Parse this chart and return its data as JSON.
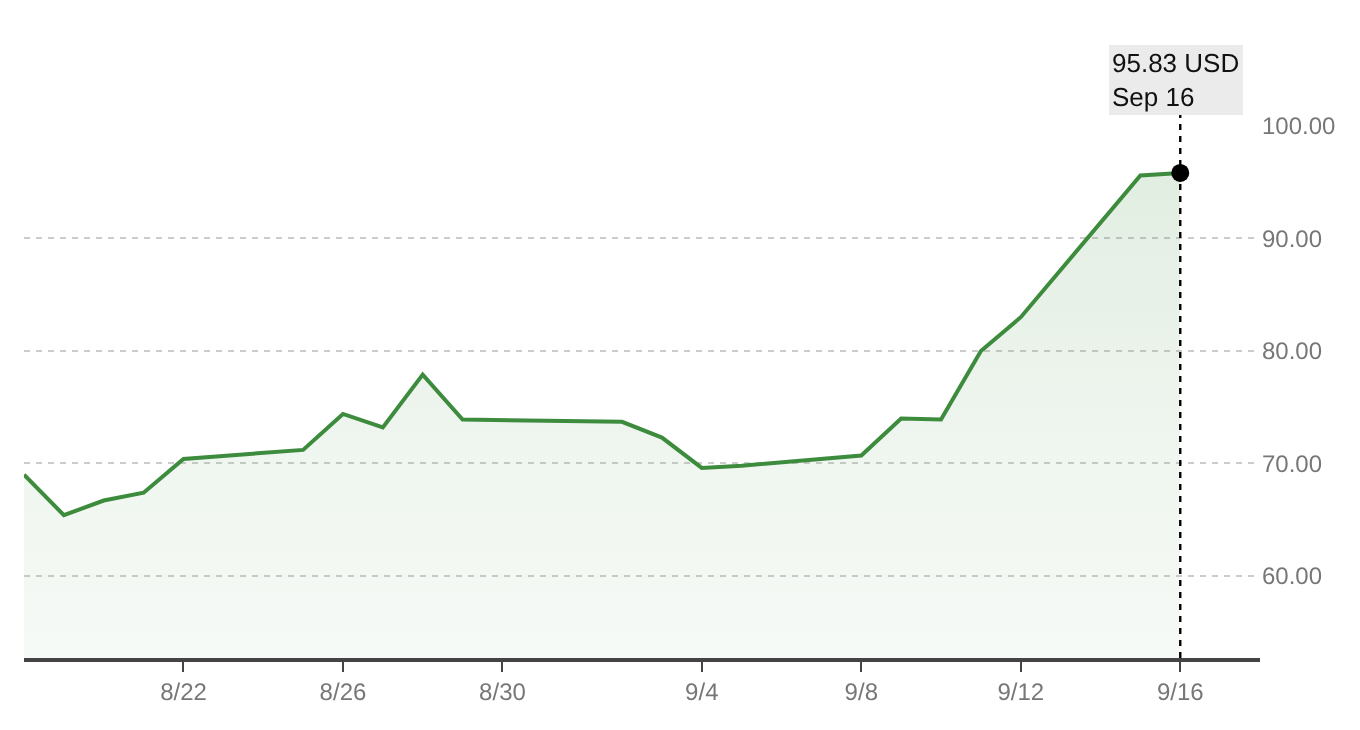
{
  "chart_data": {
    "type": "area",
    "x": [
      "--08-18",
      "--08-19",
      "--08-20",
      "--08-21",
      "--08-22",
      "--08-25",
      "--08-26",
      "--08-27",
      "--08-28",
      "--08-29",
      "--09-02",
      "--09-03",
      "--09-04",
      "--09-05",
      "--09-08",
      "--09-09",
      "--09-10",
      "--09-11",
      "--09-12",
      "--09-15",
      "--09-16"
    ],
    "series": [
      {
        "color": "#3d8b3d",
        "values": [
          69.0,
          65.4,
          66.7,
          67.4,
          70.4,
          71.2,
          74.4,
          73.2,
          77.9,
          73.9,
          73.7,
          72.3,
          69.6,
          69.8,
          70.7,
          74.0,
          73.9,
          80.0,
          83.0,
          95.6,
          95.83
        ]
      }
    ],
    "xlim": [
      "--08-18",
      "--09-18"
    ],
    "xticks": [
      {
        "value": "--08-22",
        "label": "8/22"
      },
      {
        "value": "--08-26",
        "label": "8/26"
      },
      {
        "value": "--08-30",
        "label": "8/30"
      },
      {
        "value": "--09-04",
        "label": "9/4"
      },
      {
        "value": "--09-08",
        "label": "9/8"
      },
      {
        "value": "--09-12",
        "label": "9/12"
      },
      {
        "value": "--09-16",
        "label": "9/16"
      }
    ],
    "ylim": [
      52.7,
      100
    ],
    "yticks": [
      {
        "value": 60,
        "label": "60.00"
      },
      {
        "value": 70,
        "label": "70.00"
      },
      {
        "value": 80,
        "label": "80.00"
      },
      {
        "value": 90,
        "label": "90.00"
      },
      {
        "value": 100,
        "label": "100.00"
      }
    ],
    "grid": "y",
    "legend": false,
    "ref_lines": [
      {
        "axis": "x",
        "value": "--09-16",
        "line_style": "dotted",
        "color": "#000000"
      }
    ],
    "annotations": [
      "95.83 USD\nSep 16"
    ]
  }
}
